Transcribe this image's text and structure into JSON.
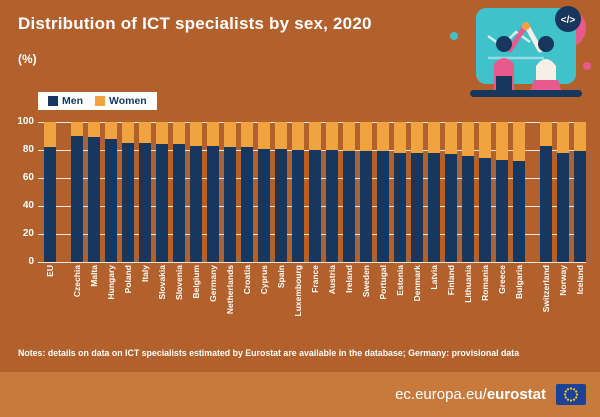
{
  "page": {
    "title": "Distribution of ICT specialists by sex, 2020",
    "unit_label": "(%)"
  },
  "legend": {
    "men": "Men",
    "women": "Women"
  },
  "illustration": {
    "code_glyph": "</>"
  },
  "notes": "Notes: details on data on ICT specialists estimated by Eurostat are available in the database; Germany: provisional data",
  "footer": {
    "url_prefix": "ec.europa.eu/",
    "url_bold": "eurostat"
  },
  "colors": {
    "men": "#17375E",
    "women": "#F0A33F",
    "background": "#B2602C",
    "footer_band": "#C87A3C"
  },
  "chart_data": {
    "type": "bar",
    "stacked": true,
    "title": "Distribution of ICT specialists by sex, 2020",
    "unit": "%",
    "ylim": [
      0,
      100
    ],
    "yticks": [
      100,
      80,
      60,
      40,
      20,
      0
    ],
    "grid": true,
    "legend_position": "top-left",
    "categories": [
      "EU",
      "Czechia",
      "Malta",
      "Hungary",
      "Poland",
      "Italy",
      "Slovakia",
      "Slovenia",
      "Belgium",
      "Germany",
      "Netherlands",
      "Croatia",
      "Cyprus",
      "Spain",
      "Luxembourg",
      "France",
      "Austria",
      "Ireland",
      "Sweden",
      "Portugal",
      "Estonia",
      "Denmark",
      "Latvia",
      "Finland",
      "Lithuania",
      "Romania",
      "Greece",
      "Bulgaria",
      "Switzerland",
      "Norway",
      "Iceland"
    ],
    "series": [
      {
        "name": "Men",
        "color": "#17375E",
        "values": [
          82,
          90,
          89,
          88,
          85,
          85,
          84,
          84,
          83,
          83,
          82,
          82,
          81,
          81,
          80,
          80,
          80,
          79,
          79,
          79,
          78,
          78,
          78,
          77,
          76,
          74,
          73,
          72,
          83,
          78,
          79
        ]
      },
      {
        "name": "Women",
        "color": "#F0A33F",
        "values": [
          18,
          10,
          11,
          12,
          15,
          15,
          16,
          16,
          17,
          17,
          18,
          18,
          19,
          19,
          20,
          20,
          20,
          21,
          21,
          21,
          22,
          22,
          22,
          23,
          24,
          26,
          27,
          28,
          17,
          22,
          21
        ]
      }
    ],
    "gap_after": [
      "EU",
      "Bulgaria"
    ]
  }
}
